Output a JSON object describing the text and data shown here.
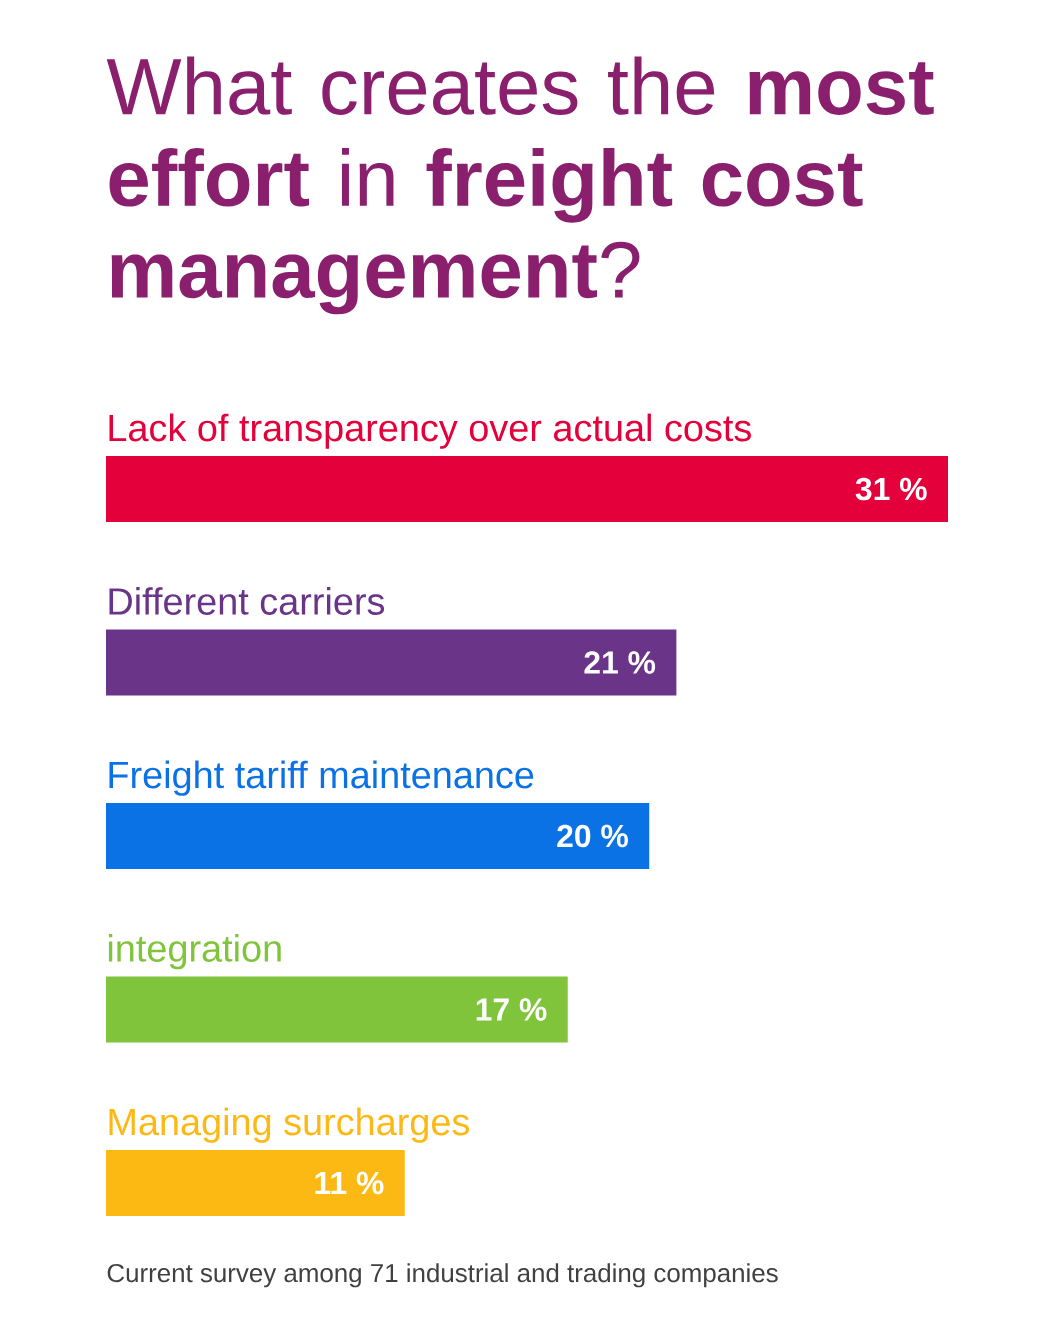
{
  "chart_data": {
    "type": "bar",
    "orientation": "horizontal",
    "title": "What creates the **most effort** in **freight cost management**?",
    "categories": [
      "Lack of transparency over actual costs",
      "Different carriers",
      "Freight tariff maintenance",
      "integration",
      "Managing surcharges"
    ],
    "values": [
      31,
      21,
      20,
      17,
      11
    ],
    "colors": [
      "#e4003a",
      "#6a3589",
      "#0b72e6",
      "#7fc43a",
      "#fdb913"
    ],
    "value_labels": [
      "31 %",
      "21 %",
      "20 %",
      "17 %",
      "11 %"
    ],
    "annotations": [
      "Current survey among 71 industrial and trading companies"
    ]
  }
}
